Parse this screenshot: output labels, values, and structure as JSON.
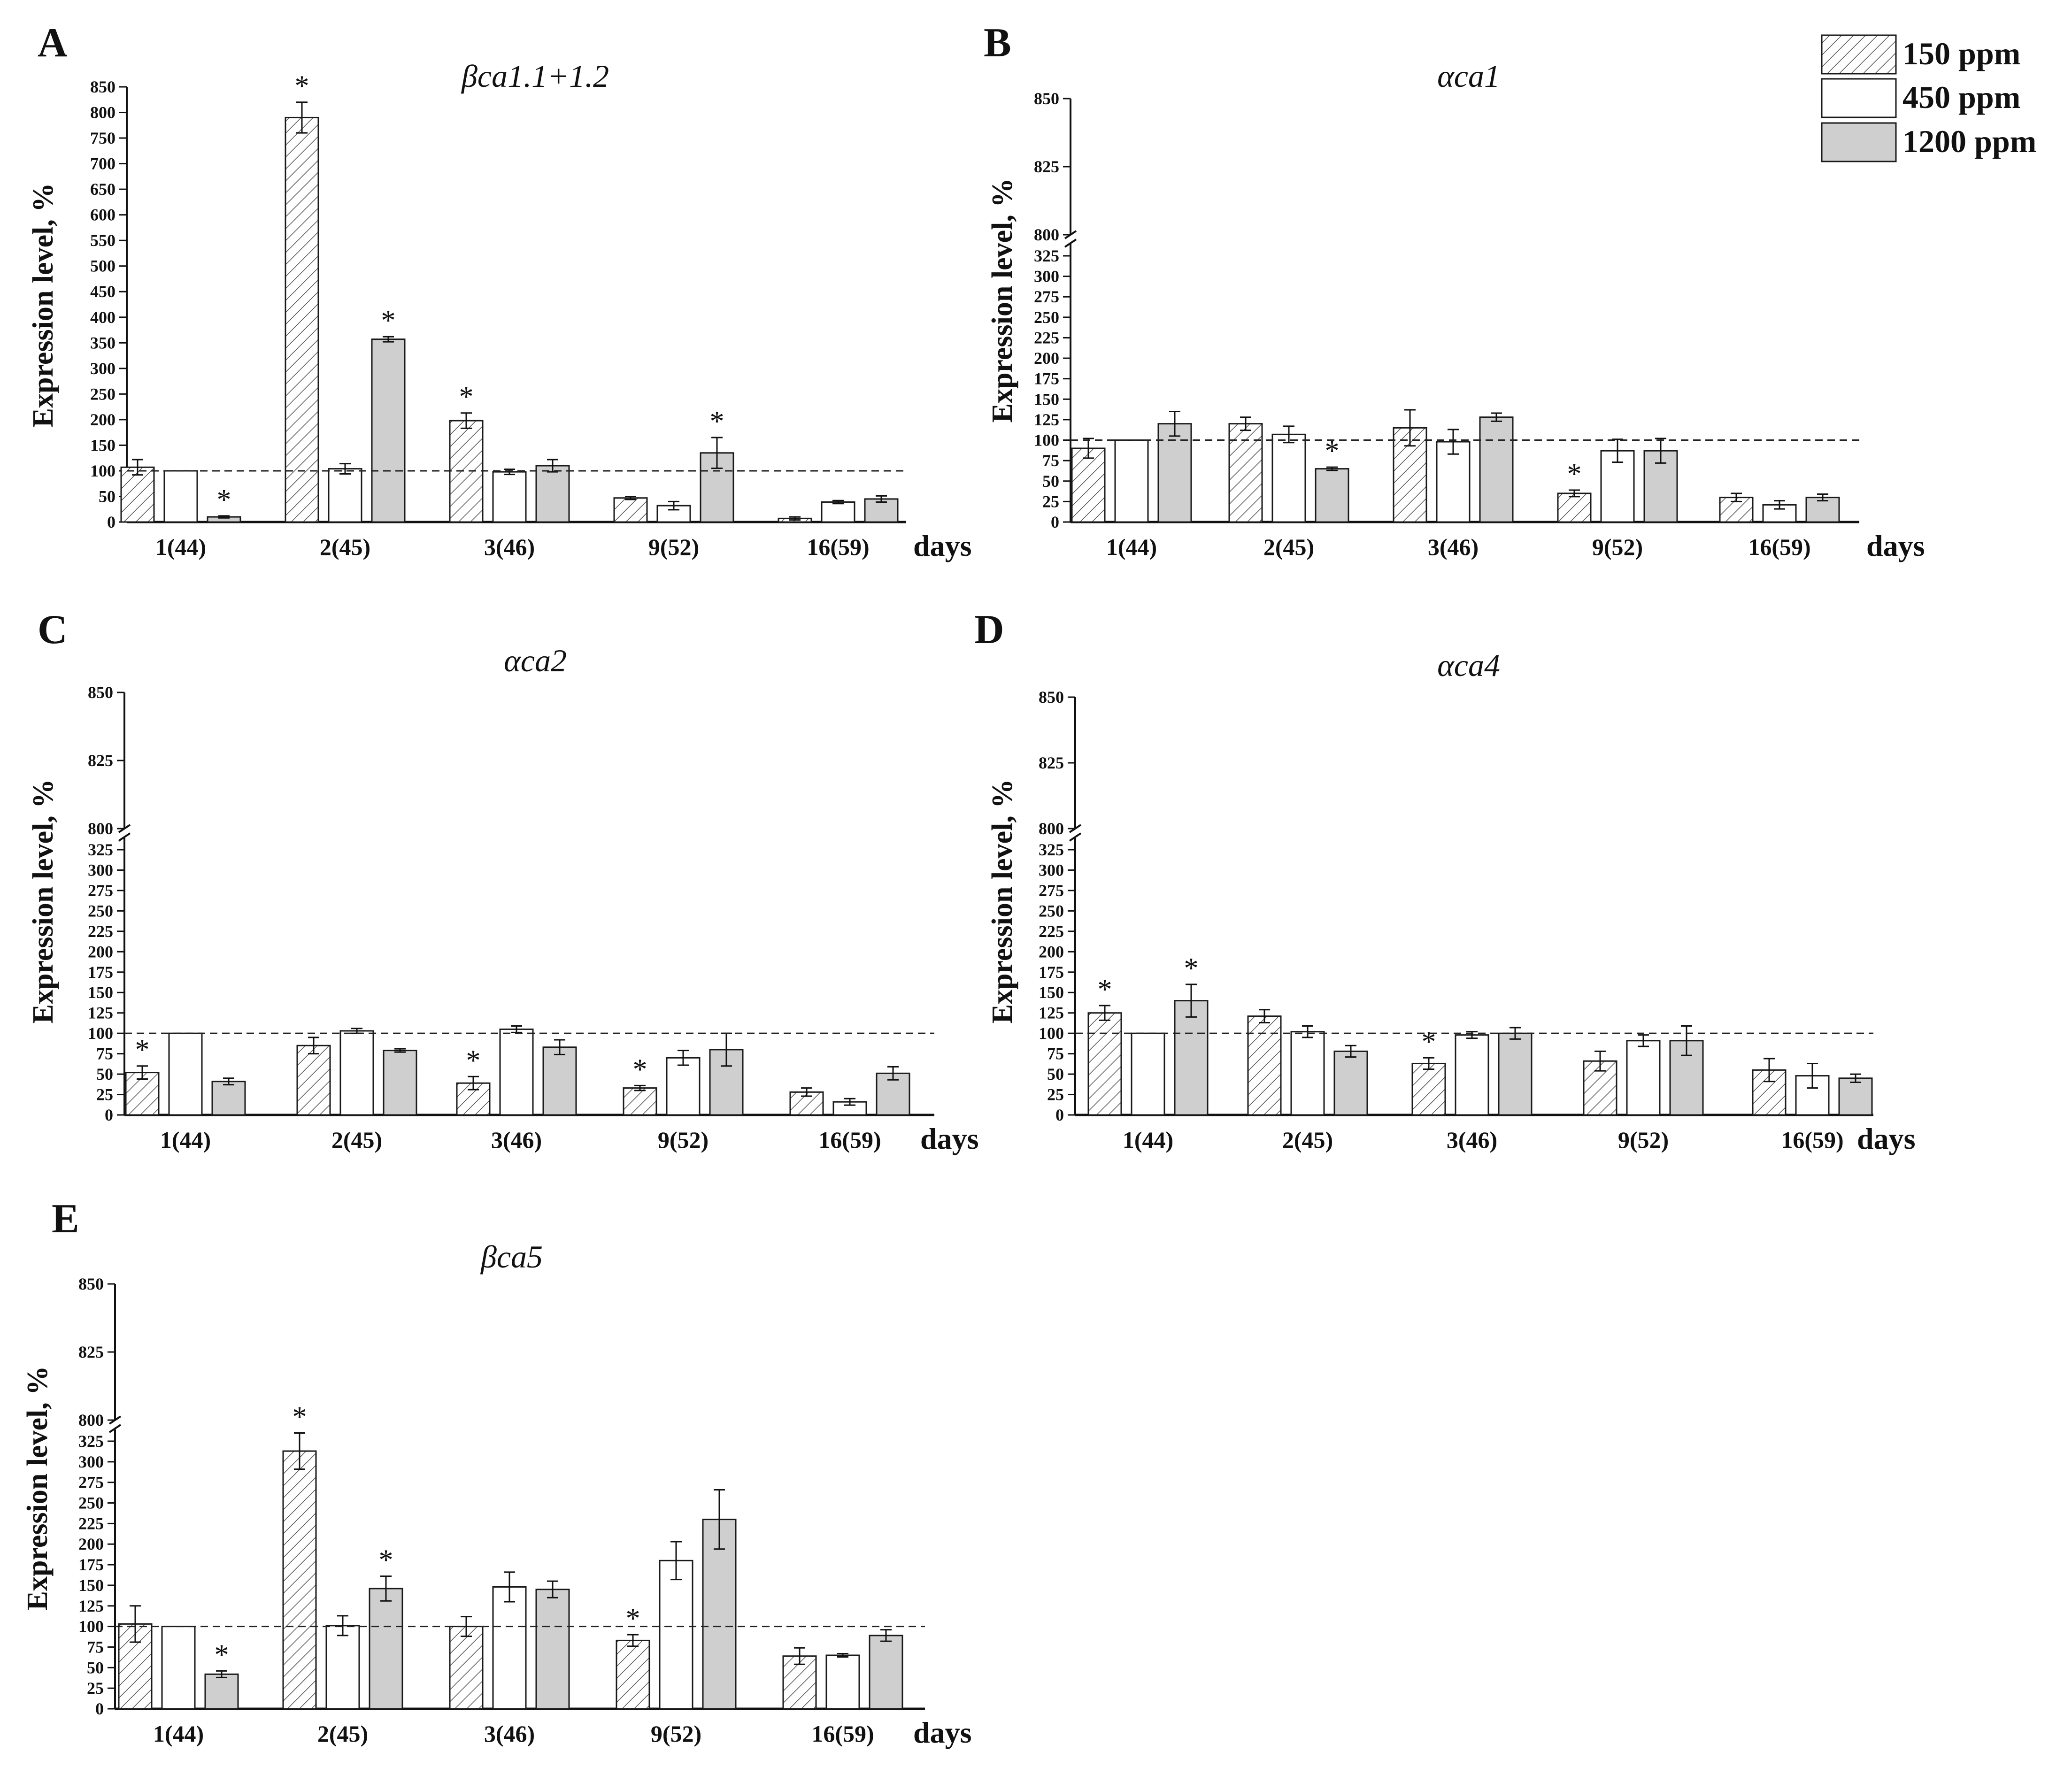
{
  "figure": {
    "categories": [
      "1(44)",
      "2(45)",
      "3(46)",
      "9(52)",
      "16(59)"
    ],
    "x_unit": "days",
    "ylabel": "Expression level, %",
    "legend": [
      {
        "label": "150 ppm",
        "fill": "hatch"
      },
      {
        "label": "450 ppm",
        "fill": "#ffffff"
      },
      {
        "label": "1200 ppm",
        "fill": "#cfcfcf"
      }
    ],
    "colors": {
      "bar_stroke": "#1a1a1a",
      "gray_fill": "#cfcfcf",
      "hatch": "#555555"
    }
  },
  "chart_data": [
    {
      "panel": "A",
      "title": "βca1.1+1.2",
      "type": "bar",
      "categories": [
        "1(44)",
        "2(45)",
        "3(46)",
        "9(52)",
        "16(59)"
      ],
      "series": [
        {
          "name": "150 ppm",
          "values": [
            107,
            790,
            198,
            47,
            7
          ],
          "errors": [
            15,
            30,
            15,
            3,
            3
          ],
          "sig": [
            false,
            true,
            true,
            false,
            false
          ]
        },
        {
          "name": "450 ppm",
          "values": [
            100,
            104,
            98,
            32,
            39
          ],
          "errors": [
            0,
            10,
            5,
            8,
            3
          ],
          "sig": [
            false,
            false,
            false,
            false,
            false
          ]
        },
        {
          "name": "1200 ppm",
          "values": [
            10,
            357,
            110,
            135,
            45
          ],
          "errors": [
            2,
            5,
            12,
            30,
            6
          ],
          "sig": [
            true,
            true,
            false,
            true,
            false
          ]
        }
      ],
      "yticks": [
        0,
        50,
        100,
        150,
        200,
        250,
        300,
        350,
        400,
        450,
        500,
        550,
        600,
        650,
        700,
        750,
        800,
        850
      ],
      "ylim": [
        0,
        850
      ],
      "reference_line": 100,
      "axis_break": false
    },
    {
      "panel": "B",
      "title": "αca1",
      "type": "bar",
      "categories": [
        "1(44)",
        "2(45)",
        "3(46)",
        "9(52)",
        "16(59)"
      ],
      "series": [
        {
          "name": "150 ppm",
          "values": [
            90,
            120,
            115,
            35,
            30
          ],
          "errors": [
            12,
            8,
            22,
            4,
            5
          ],
          "sig": [
            false,
            false,
            false,
            true,
            false
          ]
        },
        {
          "name": "450 ppm",
          "values": [
            100,
            107,
            98,
            87,
            21
          ],
          "errors": [
            0,
            10,
            15,
            14,
            5
          ],
          "sig": [
            false,
            false,
            false,
            false,
            false
          ]
        },
        {
          "name": "1200 ppm",
          "values": [
            120,
            65,
            128,
            87,
            30
          ],
          "errors": [
            15,
            2,
            5,
            15,
            4
          ],
          "sig": [
            false,
            true,
            false,
            false,
            false
          ]
        }
      ],
      "yticks_lower": [
        0,
        25,
        50,
        75,
        100,
        125,
        150,
        175,
        200,
        225,
        250,
        275,
        300,
        325
      ],
      "yticks_upper": [
        800,
        825,
        850
      ],
      "reference_line": 100,
      "axis_break": true
    },
    {
      "panel": "C",
      "title": "αca2",
      "type": "bar",
      "categories": [
        "1(44)",
        "2(45)",
        "3(46)",
        "9(52)",
        "16(59)"
      ],
      "series": [
        {
          "name": "150 ppm",
          "values": [
            52,
            85,
            39,
            33,
            28
          ],
          "errors": [
            8,
            10,
            8,
            3,
            5
          ],
          "sig": [
            true,
            false,
            true,
            true,
            false
          ]
        },
        {
          "name": "450 ppm",
          "values": [
            100,
            103,
            105,
            70,
            16
          ],
          "errors": [
            0,
            3,
            4,
            9,
            4
          ],
          "sig": [
            false,
            false,
            false,
            false,
            false
          ]
        },
        {
          "name": "1200 ppm",
          "values": [
            41,
            79,
            83,
            80,
            51
          ],
          "errors": [
            4,
            2,
            9,
            20,
            8
          ],
          "sig": [
            false,
            false,
            false,
            false,
            false
          ]
        }
      ],
      "yticks_lower": [
        0,
        25,
        50,
        75,
        100,
        125,
        150,
        175,
        200,
        225,
        250,
        275,
        300,
        325
      ],
      "yticks_upper": [
        800,
        825,
        850
      ],
      "reference_line": 100,
      "axis_break": true
    },
    {
      "panel": "D",
      "title": "αca4",
      "type": "bar",
      "categories": [
        "1(44)",
        "2(45)",
        "3(46)",
        "9(52)",
        "16(59)"
      ],
      "series": [
        {
          "name": "150 ppm",
          "values": [
            125,
            121,
            63,
            66,
            55
          ],
          "errors": [
            9,
            8,
            7,
            12,
            14
          ],
          "sig": [
            true,
            false,
            true,
            false,
            false
          ]
        },
        {
          "name": "450 ppm",
          "values": [
            100,
            102,
            98,
            91,
            48
          ],
          "errors": [
            0,
            7,
            4,
            7,
            15
          ],
          "sig": [
            false,
            false,
            false,
            false,
            false
          ]
        },
        {
          "name": "1200 ppm",
          "values": [
            140,
            78,
            100,
            91,
            45
          ],
          "errors": [
            20,
            7,
            7,
            18,
            5
          ],
          "sig": [
            true,
            false,
            false,
            false,
            false
          ]
        }
      ],
      "yticks_lower": [
        0,
        25,
        50,
        75,
        100,
        125,
        150,
        175,
        200,
        225,
        250,
        275,
        300,
        325
      ],
      "yticks_upper": [
        800,
        825,
        850
      ],
      "reference_line": 100,
      "axis_break": true
    },
    {
      "panel": "E",
      "title": "βca5",
      "type": "bar",
      "categories": [
        "1(44)",
        "2(45)",
        "3(46)",
        "9(52)",
        "16(59)"
      ],
      "series": [
        {
          "name": "150 ppm",
          "values": [
            103,
            313,
            100,
            83,
            64
          ],
          "errors": [
            22,
            22,
            12,
            7,
            10
          ],
          "sig": [
            false,
            true,
            false,
            true,
            false
          ]
        },
        {
          "name": "450 ppm",
          "values": [
            100,
            101,
            148,
            180,
            65
          ],
          "errors": [
            0,
            12,
            18,
            23,
            2
          ],
          "sig": [
            false,
            false,
            false,
            false,
            false
          ]
        },
        {
          "name": "1200 ppm",
          "values": [
            42,
            146,
            145,
            230,
            89
          ],
          "errors": [
            4,
            15,
            10,
            36,
            7
          ],
          "sig": [
            true,
            true,
            false,
            false,
            false
          ]
        }
      ],
      "yticks_lower": [
        0,
        25,
        50,
        75,
        100,
        125,
        150,
        175,
        200,
        225,
        250,
        275,
        300,
        325
      ],
      "yticks_upper": [
        800,
        825,
        850
      ],
      "reference_line": 100,
      "axis_break": true
    }
  ]
}
